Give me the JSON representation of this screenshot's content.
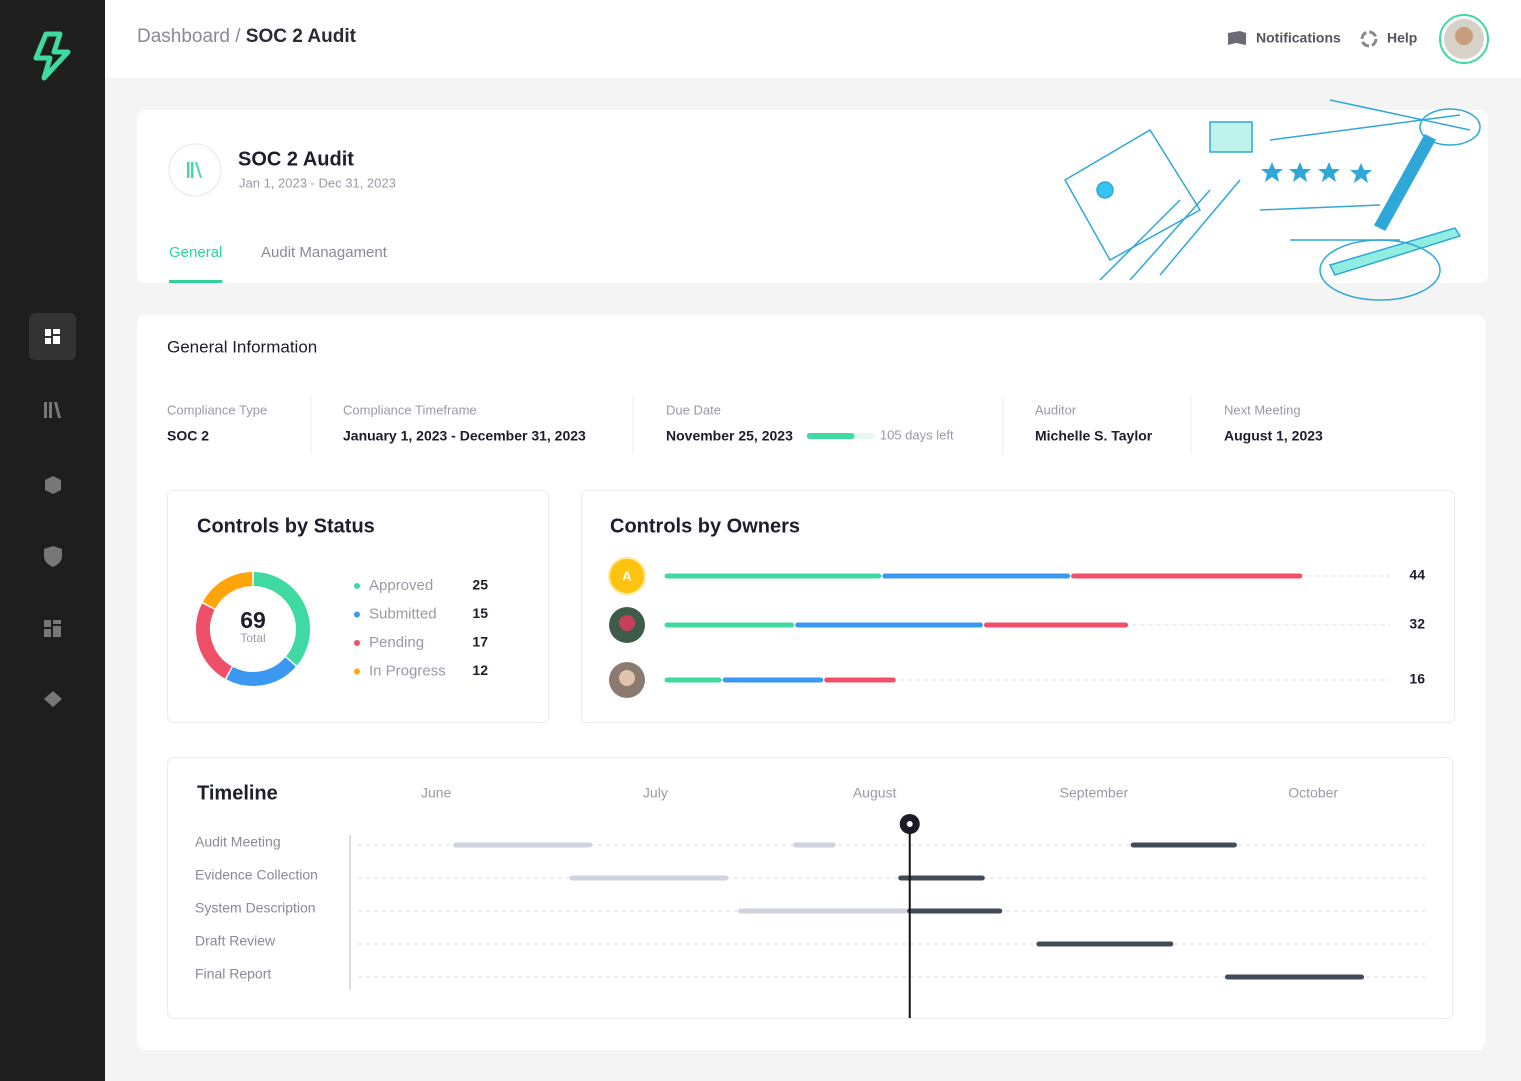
{
  "header": {
    "breadcrumb_parent": "Dashboard",
    "breadcrumb_separator": "/",
    "breadcrumb_current": "SOC 2 Audit",
    "notifications": "Notifications",
    "help": "Help"
  },
  "audit": {
    "title": "SOC 2 Audit",
    "period": "Jan 1, 2023 - Dec 31, 2023",
    "tabs": [
      "General",
      "Audit Managament"
    ],
    "active_tab": 0
  },
  "general_information": {
    "title": "General Information",
    "fields": [
      {
        "label": "Compliance Type",
        "value": "SOC 2"
      },
      {
        "label": "Compliance Timeframe",
        "value": "January 1, 2023 - December 31, 2023"
      },
      {
        "label": "Due Date",
        "value": "November 25, 2023",
        "progress": 70,
        "note": "105 days left"
      },
      {
        "label": "Auditor",
        "value": "Michelle S. Taylor"
      },
      {
        "label": "Next Meeting",
        "value": "August 1, 2023"
      }
    ]
  },
  "controls_by_status": {
    "title": "Controls by Status",
    "total": 69,
    "total_label": "Total",
    "items": [
      {
        "name": "Approved",
        "value": 25,
        "color": "#3fd9a2"
      },
      {
        "name": "Submitted",
        "value": 15,
        "color": "#3a98f0"
      },
      {
        "name": "Pending",
        "value": 17,
        "color": "#f04f69"
      },
      {
        "name": "In Progress",
        "value": 12,
        "color": "#ffa50a"
      }
    ]
  },
  "controls_by_owners": {
    "title": "Controls by Owners",
    "xlim": [
      0,
      50
    ],
    "colors": [
      "#3fd9a2",
      "#3a98f0",
      "#f04f69"
    ],
    "owners": [
      {
        "avatar": "A",
        "total": 44,
        "segments": [
          15,
          13,
          16
        ]
      },
      {
        "total": 32,
        "segments": [
          9,
          13,
          10
        ]
      },
      {
        "total": 16,
        "segments": [
          4,
          7,
          5
        ]
      }
    ]
  },
  "timeline": {
    "title": "Timeline",
    "xlim": [
      -0.37,
      4.51
    ],
    "xticks": [
      {
        "value": 0,
        "label": "June"
      },
      {
        "value": 1,
        "label": "July"
      },
      {
        "value": 2,
        "label": "August"
      },
      {
        "value": 3,
        "label": "September"
      },
      {
        "value": 4,
        "label": "October"
      }
    ],
    "today": 2.16,
    "rows": [
      {
        "name": "Audit Meeting",
        "bars": [
          {
            "start": 0.08,
            "end": 0.71,
            "color": "#cfd3dc"
          },
          {
            "start": 1.63,
            "end": 1.82,
            "color": "#cfd3dc"
          },
          {
            "start": 3.17,
            "end": 3.65,
            "color": "#444b58"
          }
        ]
      },
      {
        "name": "Evidence Collection",
        "bars": [
          {
            "start": 0.61,
            "end": 1.33,
            "color": "#cfd3dc"
          },
          {
            "start": 2.11,
            "end": 2.5,
            "color": "#444b58"
          }
        ]
      },
      {
        "name": "System Description",
        "bars": [
          {
            "start": 1.38,
            "end": 2.15,
            "color": "#cfd3dc"
          },
          {
            "start": 2.15,
            "end": 2.58,
            "color": "#444b58"
          }
        ]
      },
      {
        "name": "Draft Review",
        "bars": [
          {
            "start": 2.74,
            "end": 3.36,
            "color": "#444b58"
          }
        ]
      },
      {
        "name": "Final Report",
        "bars": [
          {
            "start": 3.6,
            "end": 4.23,
            "color": "#444b58"
          }
        ]
      }
    ]
  }
}
